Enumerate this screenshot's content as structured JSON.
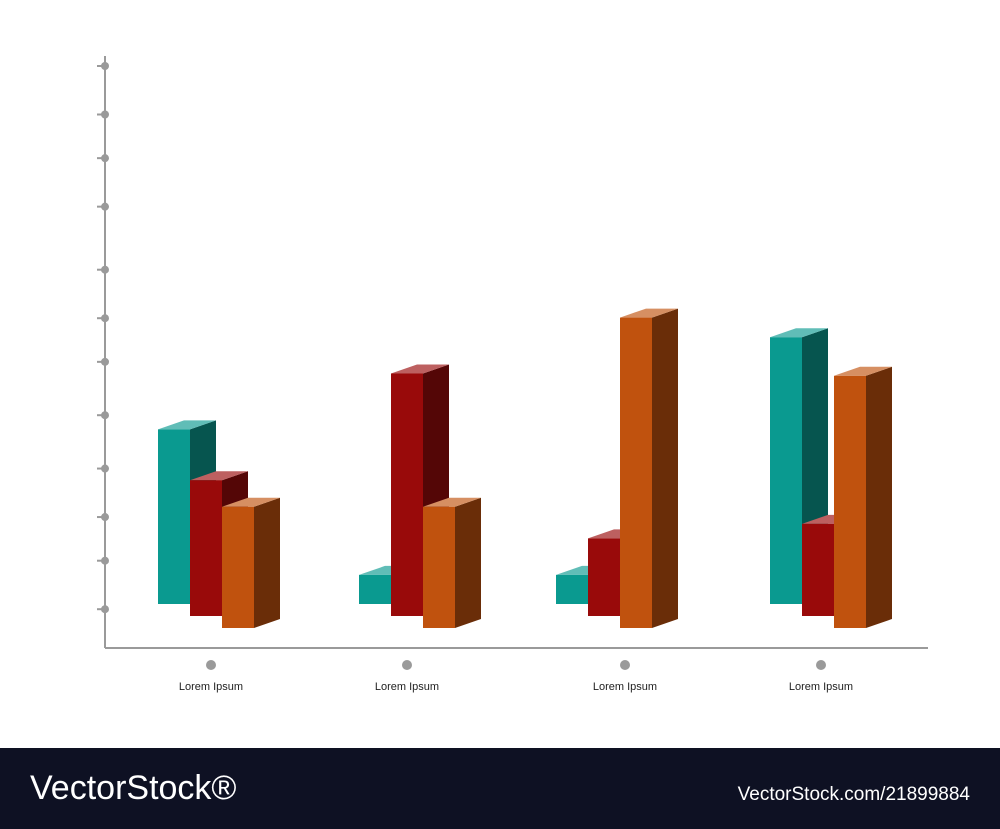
{
  "chart_data": {
    "type": "bar3d",
    "categories": [
      "Lorem Ipsum",
      "Lorem Ipsum",
      "Lorem Ipsum",
      "Lorem Ipsum"
    ],
    "series": [
      {
        "color": "#0a9a90",
        "values": [
          36,
          6,
          6,
          55
        ]
      },
      {
        "color": "#990a0a",
        "values": [
          28,
          50,
          16,
          19
        ]
      },
      {
        "color": "#c0520e",
        "values": [
          25,
          25,
          64,
          52
        ]
      }
    ],
    "ylim": [
      0,
      120
    ],
    "yticks": [
      8,
      18,
      27,
      37,
      48,
      59,
      68,
      78,
      91,
      101,
      110,
      120
    ]
  },
  "footer": {
    "brand": "VectorStock®",
    "id": "VectorStock.com/21899884"
  }
}
